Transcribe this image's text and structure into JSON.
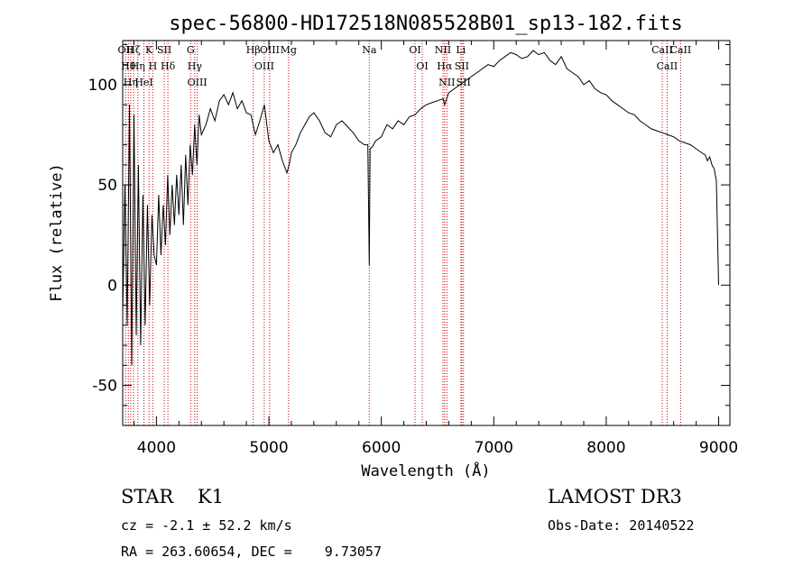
{
  "chart_data": {
    "type": "line",
    "title": "spec-56800-HD172518N085528B01_sp13-182.fits",
    "xlabel": "Wavelength (Å)",
    "ylabel": "Flux (relative)",
    "xlim": [
      3700,
      9100
    ],
    "ylim": [
      -70,
      122
    ],
    "xticks": [
      4000,
      5000,
      6000,
      7000,
      8000,
      9000
    ],
    "yticks": [
      -50,
      0,
      50,
      100
    ],
    "line_color": "#000000",
    "marker_color": "#cc0000",
    "series": [
      {
        "x": [
          3700,
          3720,
          3740,
          3760,
          3780,
          3800,
          3820,
          3840,
          3860,
          3880,
          3900,
          3920,
          3940,
          3960,
          3980,
          4000,
          4020,
          4040,
          4060,
          4080,
          4100,
          4120,
          4140,
          4160,
          4180,
          4200,
          4220,
          4240,
          4260,
          4280,
          4300,
          4320,
          4340,
          4360,
          4380,
          4400,
          4440,
          4480,
          4520,
          4560,
          4600,
          4640,
          4680,
          4720,
          4760,
          4800,
          4840,
          4860,
          4880,
          4920,
          4960,
          5000,
          5040,
          5080,
          5120,
          5160,
          5180,
          5200,
          5240,
          5280,
          5320,
          5360,
          5400,
          5450,
          5500,
          5550,
          5600,
          5650,
          5700,
          5750,
          5800,
          5850,
          5880,
          5893,
          5900,
          5920,
          5950,
          6000,
          6050,
          6100,
          6150,
          6200,
          6250,
          6300,
          6350,
          6400,
          6450,
          6500,
          6550,
          6563,
          6600,
          6650,
          6700,
          6750,
          6800,
          6850,
          6900,
          6950,
          7000,
          7050,
          7100,
          7150,
          7200,
          7250,
          7300,
          7350,
          7400,
          7450,
          7500,
          7550,
          7600,
          7650,
          7700,
          7750,
          7800,
          7850,
          7900,
          7950,
          8000,
          8050,
          8100,
          8150,
          8200,
          8250,
          8300,
          8350,
          8400,
          8450,
          8500,
          8550,
          8600,
          8650,
          8700,
          8750,
          8800,
          8850,
          8880,
          8900,
          8920,
          8940,
          8960,
          8980,
          9000
        ],
        "values": [
          -15,
          50,
          -20,
          90,
          -40,
          85,
          -25,
          60,
          -30,
          45,
          -20,
          40,
          -10,
          35,
          15,
          10,
          45,
          15,
          40,
          20,
          55,
          25,
          50,
          30,
          55,
          35,
          60,
          30,
          65,
          40,
          70,
          55,
          80,
          60,
          85,
          75,
          80,
          88,
          82,
          92,
          95,
          90,
          96,
          88,
          92,
          86,
          85,
          80,
          75,
          82,
          90,
          72,
          66,
          70,
          62,
          56,
          60,
          66,
          70,
          76,
          80,
          84,
          86,
          82,
          76,
          74,
          80,
          82,
          79,
          76,
          72,
          70,
          70,
          10,
          68,
          69,
          72,
          74,
          80,
          78,
          82,
          80,
          84,
          85,
          88,
          90,
          91,
          92,
          93,
          90,
          96,
          98,
          100,
          102,
          104,
          106,
          108,
          110,
          109,
          112,
          114,
          116,
          115,
          113,
          114,
          117,
          115,
          116,
          112,
          110,
          114,
          108,
          106,
          104,
          100,
          102,
          98,
          96,
          95,
          92,
          90,
          88,
          86,
          85,
          82,
          80,
          78,
          77,
          76,
          75,
          74,
          72,
          71,
          70,
          68,
          66,
          65,
          62,
          64,
          60,
          58,
          52,
          0
        ]
      }
    ],
    "spectral_lines": [
      {
        "x": 3727,
        "label": "OII"
      },
      {
        "x": 3750,
        "label": "Hθ"
      },
      {
        "x": 3771,
        "label": "Hη"
      },
      {
        "x": 3797,
        "label": "Hζ"
      },
      {
        "x": 3835,
        "label": "Hη"
      },
      {
        "x": 3889,
        "label": "HeI"
      },
      {
        "x": 3934,
        "label": "K"
      },
      {
        "x": 3968,
        "label": "H"
      },
      {
        "x": 4070,
        "label": "SII"
      },
      {
        "x": 4102,
        "label": "Hδ"
      },
      {
        "x": 4304,
        "label": "G"
      },
      {
        "x": 4341,
        "label": "Hγ"
      },
      {
        "x": 4363,
        "label": "OIII"
      },
      {
        "x": 4861,
        "label": "Hβ"
      },
      {
        "x": 4959,
        "label": "OIII"
      },
      {
        "x": 5007,
        "label": "OIII"
      },
      {
        "x": 5175,
        "label": "Mg"
      },
      {
        "x": 5893,
        "label": "Na"
      },
      {
        "x": 6300,
        "label": "OI"
      },
      {
        "x": 6364,
        "label": "OI"
      },
      {
        "x": 6548,
        "label": "NII"
      },
      {
        "x": 6563,
        "label": "Hα"
      },
      {
        "x": 6583,
        "label": "NII"
      },
      {
        "x": 6707,
        "label": "Li"
      },
      {
        "x": 6716,
        "label": "SII"
      },
      {
        "x": 6731,
        "label": "SII"
      },
      {
        "x": 8498,
        "label": "CaII"
      },
      {
        "x": 8542,
        "label": "CaII"
      },
      {
        "x": 8662,
        "label": "CaII"
      }
    ]
  },
  "info": {
    "class": "STAR    K1",
    "survey": "LAMOST DR3",
    "cz": "cz = -2.1 ± 52.2 km/s",
    "obs_date": "Obs-Date: 20140522",
    "radec": "RA = 263.60654, DEC =    9.73057"
  }
}
